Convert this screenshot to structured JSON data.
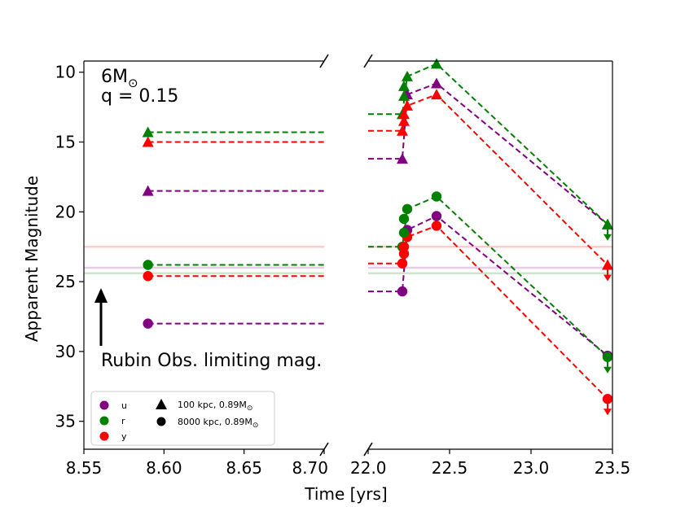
{
  "annotations": {
    "mass": "6M",
    "mass_sub": "⊙",
    "q": "q = 0.15",
    "arrow_text": "Rubin Obs. limiting mag."
  },
  "colors": {
    "u": "#800080",
    "r": "#008000",
    "y": "#ff0000"
  },
  "chart_data": {
    "type": "scatter",
    "title": "",
    "xlabel": "Time [yrs]",
    "ylabel": "Apparent Magnitude",
    "ylim": [
      37,
      9.2
    ],
    "y_inverted": true,
    "broken_x_axis": true,
    "panels": [
      {
        "name": "left",
        "xlim": [
          8.55,
          8.7
        ],
        "xticks": [
          8.55,
          8.6,
          8.65,
          8.7
        ],
        "xtick_labels": [
          "8.55",
          "8.60",
          "8.65",
          "8.70"
        ]
      },
      {
        "name": "right",
        "xlim": [
          22.0,
          23.5
        ],
        "xticks": [
          22.0,
          22.5,
          23.0,
          23.5
        ],
        "xtick_labels": [
          "22.0",
          "22.5",
          "23.0",
          "23.5"
        ]
      }
    ],
    "yticks": [
      10,
      15,
      20,
      25,
      30,
      35
    ],
    "ytick_labels": [
      "10",
      "15",
      "20",
      "25",
      "30",
      "35"
    ],
    "limiting_magnitudes": [
      {
        "band": "u",
        "value": 24.0
      },
      {
        "band": "r",
        "value": 24.4
      },
      {
        "band": "y",
        "value": 22.5
      }
    ],
    "legend": {
      "position": "bottom-left",
      "bands": [
        {
          "band": "u",
          "label": "u"
        },
        {
          "band": "r",
          "label": "r"
        },
        {
          "band": "y",
          "label": "y"
        }
      ],
      "markers": [
        {
          "marker": "triangle",
          "label": "100 kpc, 0.89M",
          "sub": "⊙"
        },
        {
          "marker": "circle",
          "label": "8000 kpc, 0.89M",
          "sub": "⊙"
        }
      ]
    },
    "series": [
      {
        "name": "u 100 kpc",
        "band": "u",
        "marker": "triangle",
        "left": {
          "x": 8.59,
          "y": 18.5,
          "x_end": 8.7
        },
        "right": {
          "pre_x": 22.0,
          "pre_y": 16.2,
          "x": [
            22.21,
            22.24,
            22.42,
            23.47
          ],
          "y": [
            16.2,
            11.6,
            10.8,
            20.9
          ],
          "last_upper_limit": false
        }
      },
      {
        "name": "r 100 kpc",
        "band": "r",
        "marker": "triangle",
        "left": {
          "x": 8.59,
          "y": 14.3,
          "x_end": 8.7
        },
        "right": {
          "pre_x": 22.0,
          "pre_y": 13.0,
          "x": [
            22.21,
            22.24,
            22.42,
            23.47
          ],
          "y": [
            13.0,
            10.3,
            9.4,
            20.9
          ],
          "last_upper_limit": true
        }
      },
      {
        "name": "y 100 kpc",
        "band": "y",
        "marker": "triangle",
        "left": {
          "x": 8.59,
          "y": 15.0,
          "x_end": 8.7
        },
        "right": {
          "pre_x": 22.0,
          "pre_y": 14.2,
          "x": [
            22.21,
            22.24,
            22.42,
            23.47
          ],
          "y": [
            14.2,
            12.4,
            11.6,
            23.8
          ],
          "last_upper_limit": true
        }
      },
      {
        "name": "u 8000 kpc",
        "band": "u",
        "marker": "circle",
        "left": {
          "x": 8.59,
          "y": 28.0,
          "x_end": 8.7
        },
        "right": {
          "pre_x": 22.0,
          "pre_y": 25.7,
          "x": [
            22.21,
            22.24,
            22.42,
            23.47
          ],
          "y": [
            25.7,
            21.3,
            20.3,
            30.3
          ],
          "last_upper_limit": false
        }
      },
      {
        "name": "r 8000 kpc",
        "band": "r",
        "marker": "circle",
        "left": {
          "x": 8.59,
          "y": 23.8,
          "x_end": 8.7
        },
        "right": {
          "pre_x": 22.0,
          "pre_y": 22.5,
          "x": [
            22.21,
            22.24,
            22.42,
            23.47
          ],
          "y": [
            22.5,
            19.8,
            18.9,
            30.4
          ],
          "last_upper_limit": true
        }
      },
      {
        "name": "y 8000 kpc",
        "band": "y",
        "marker": "circle",
        "left": {
          "x": 8.59,
          "y": 24.6,
          "x_end": 8.7
        },
        "right": {
          "pre_x": 22.0,
          "pre_y": 23.7,
          "x": [
            22.21,
            22.24,
            22.42,
            23.47
          ],
          "y": [
            23.7,
            21.8,
            21.0,
            33.4
          ],
          "last_upper_limit": true
        }
      }
    ],
    "rise_points": [
      {
        "band": "r",
        "marker": "triangle",
        "x": 22.22,
        "y": [
          11.7,
          11.0
        ]
      },
      {
        "band": "y",
        "marker": "triangle",
        "x": 22.22,
        "y": [
          13.5,
          13.0
        ]
      },
      {
        "band": "r",
        "marker": "circle",
        "x": 22.22,
        "y": [
          21.5,
          20.5
        ]
      },
      {
        "band": "y",
        "marker": "circle",
        "x": 22.22,
        "y": [
          23.0,
          22.5
        ]
      }
    ]
  }
}
